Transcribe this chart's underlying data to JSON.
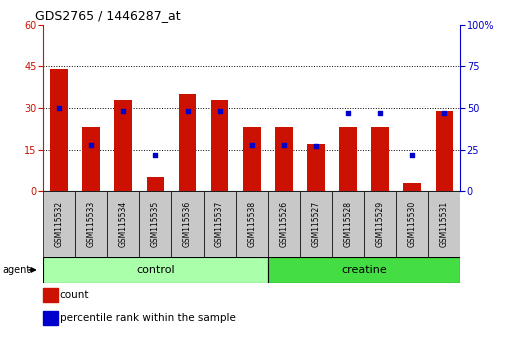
{
  "title": "GDS2765 / 1446287_at",
  "samples": [
    "GSM115532",
    "GSM115533",
    "GSM115534",
    "GSM115535",
    "GSM115536",
    "GSM115537",
    "GSM115538",
    "GSM115526",
    "GSM115527",
    "GSM115528",
    "GSM115529",
    "GSM115530",
    "GSM115531"
  ],
  "counts": [
    44,
    23,
    33,
    5,
    35,
    33,
    23,
    23,
    17,
    23,
    23,
    3,
    29
  ],
  "percentiles": [
    50,
    28,
    48,
    22,
    48,
    48,
    28,
    28,
    27,
    47,
    47,
    22,
    47
  ],
  "bar_color": "#CC1100",
  "point_color": "#0000CC",
  "left_ylim": [
    0,
    60
  ],
  "right_ylim": [
    0,
    100
  ],
  "left_yticks": [
    0,
    15,
    30,
    45,
    60
  ],
  "right_yticks": [
    0,
    25,
    50,
    75,
    100
  ],
  "control_indices": [
    0,
    1,
    2,
    3,
    4,
    5,
    6
  ],
  "creatine_indices": [
    7,
    8,
    9,
    10,
    11,
    12
  ],
  "control_label": "control",
  "creatine_label": "creatine",
  "agent_label": "agent",
  "legend_count": "count",
  "legend_percentile": "percentile rank within the sample",
  "control_color": "#aaffaa",
  "creatine_color": "#44dd44",
  "tick_bg_color": "#c8c8c8",
  "bar_width": 0.55,
  "grid_color": "black",
  "grid_linestyle": "dotted"
}
